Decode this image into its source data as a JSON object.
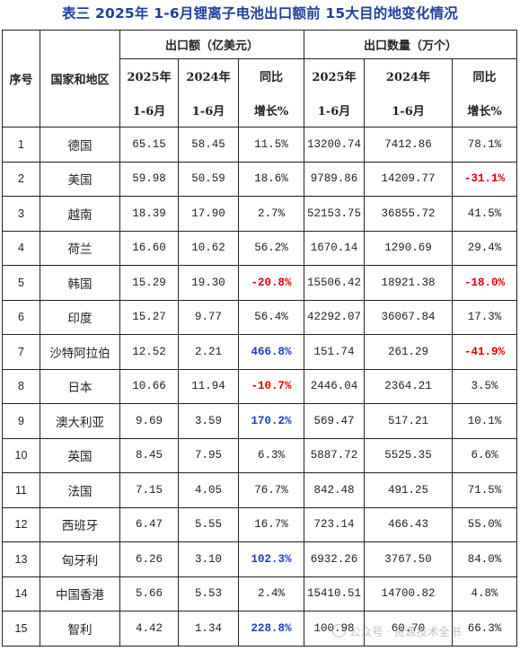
{
  "title": "表三 2025年 1-6月锂离子电池出口额前 15大目的地变化情况",
  "headers": {
    "index": "序号",
    "region": "国家和地区",
    "export_value": "出口额（亿美元）",
    "export_volume": "出口数量（万个）",
    "year2025": "2025年",
    "year2024": "2024年",
    "period": "1-6月",
    "yoy_top": "同比",
    "yoy_bottom": "增长%"
  },
  "rows": [
    {
      "idx": "1",
      "region": "德国",
      "v25": "65.15",
      "v24": "58.45",
      "vg": "11.5%",
      "q25": "13200.74",
      "q24": "7412.86",
      "qg": "78.1%"
    },
    {
      "idx": "2",
      "region": "美国",
      "v25": "59.98",
      "v24": "50.59",
      "vg": "18.6%",
      "q25": "9789.86",
      "q24": "14209.77",
      "qg": "-31.1%"
    },
    {
      "idx": "3",
      "region": "越南",
      "v25": "18.39",
      "v24": "17.90",
      "vg": "2.7%",
      "q25": "52153.75",
      "q24": "36855.72",
      "qg": "41.5%"
    },
    {
      "idx": "4",
      "region": "荷兰",
      "v25": "16.60",
      "v24": "10.62",
      "vg": "56.2%",
      "q25": "1670.14",
      "q24": "1290.69",
      "qg": "29.4%"
    },
    {
      "idx": "5",
      "region": "韩国",
      "v25": "15.29",
      "v24": "19.30",
      "vg": "-20.8%",
      "q25": "15506.42",
      "q24": "18921.38",
      "qg": "-18.0%"
    },
    {
      "idx": "6",
      "region": "印度",
      "v25": "15.27",
      "v24": "9.77",
      "vg": "56.4%",
      "q25": "42292.07",
      "q24": "36067.84",
      "qg": "17.3%"
    },
    {
      "idx": "7",
      "region": "沙特阿拉伯",
      "v25": "12.52",
      "v24": "2.21",
      "vg": "466.8%",
      "q25": "151.74",
      "q24": "261.29",
      "qg": "-41.9%"
    },
    {
      "idx": "8",
      "region": "日本",
      "v25": "10.66",
      "v24": "11.94",
      "vg": "-10.7%",
      "q25": "2446.04",
      "q24": "2364.21",
      "qg": "3.5%"
    },
    {
      "idx": "9",
      "region": "澳大利亚",
      "v25": "9.69",
      "v24": "3.59",
      "vg": "170.2%",
      "q25": "569.47",
      "q24": "517.21",
      "qg": "10.1%"
    },
    {
      "idx": "10",
      "region": "英国",
      "v25": "8.45",
      "v24": "7.95",
      "vg": "6.3%",
      "q25": "5887.72",
      "q24": "5525.35",
      "qg": "6.6%"
    },
    {
      "idx": "11",
      "region": "法国",
      "v25": "7.15",
      "v24": "4.05",
      "vg": "76.7%",
      "q25": "842.48",
      "q24": "491.25",
      "qg": "71.5%"
    },
    {
      "idx": "12",
      "region": "西班牙",
      "v25": "6.47",
      "v24": "5.55",
      "vg": "16.7%",
      "q25": "723.14",
      "q24": "466.43",
      "qg": "55.0%"
    },
    {
      "idx": "13",
      "region": "匈牙利",
      "v25": "6.26",
      "v24": "3.10",
      "vg": "102.3%",
      "q25": "6932.26",
      "q24": "3767.50",
      "qg": "84.0%"
    },
    {
      "idx": "14",
      "region": "中国香港",
      "v25": "5.66",
      "v24": "5.53",
      "vg": "2.4%",
      "q25": "15410.51",
      "q24": "14700.82",
      "qg": "4.8%"
    },
    {
      "idx": "15",
      "region": "智利",
      "v25": "4.42",
      "v24": "1.34",
      "vg": "228.8%",
      "q25": "100.98",
      "q24": "60.70",
      "qg": "66.3%"
    }
  ],
  "colors": {
    "negative": "#e00000",
    "highlight_growth": "#1a3fc0",
    "title": "#1f3f99"
  },
  "watermark": "公众号 · 资源技术全书",
  "watermark_icon": "wechat-icon"
}
